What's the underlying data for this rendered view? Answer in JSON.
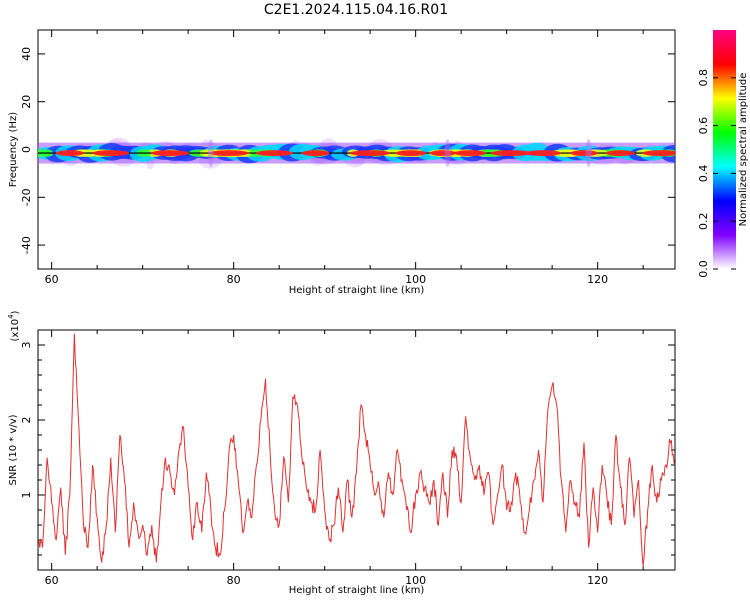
{
  "chart_data": [
    {
      "type": "heatmap",
      "title": "C2E1.2024.115.04.16.R01",
      "xlabel": "Height of straight line (km)",
      "ylabel": "Frequency (Hz)",
      "xlim": [
        58.5,
        128.5
      ],
      "ylim": [
        -50,
        50
      ],
      "xticks": [
        60,
        80,
        100,
        120
      ],
      "yticks": [
        40,
        20,
        0,
        -20,
        -40
      ],
      "center_frequency": -1.5,
      "band_width_hz": 7,
      "peaks_x": [
        62,
        66.5,
        73,
        79.5,
        84.5,
        89,
        95,
        99.5,
        103,
        106,
        110.5,
        114,
        118.5,
        122.5,
        127
      ],
      "colorbar": {
        "label": "Normalized spectral amplitude",
        "range": [
          0,
          1
        ],
        "ticks": [
          "0.0",
          "0.2",
          "0.4",
          "0.6",
          "0.8"
        ],
        "colors": [
          "#ffffff",
          "#8000ff",
          "#0000ff",
          "#00ffff",
          "#00ff00",
          "#ffff00",
          "#ff0000",
          "#ff0080"
        ]
      }
    },
    {
      "type": "line",
      "xlabel": "Height of straight line (km)",
      "ylabel": "SNR (10 * v/v)",
      "multiplier_label": "(x10",
      "multiplier_exp": "4",
      "multiplier_close": ")",
      "xlim": [
        58.5,
        128.5
      ],
      "ylim": [
        0,
        3.2
      ],
      "xticks": [
        60,
        80,
        100,
        120
      ],
      "yticks": [
        1,
        2,
        3
      ],
      "color": "#e03030",
      "x": [
        58.5,
        59,
        59.5,
        60,
        60.5,
        61,
        61.5,
        62,
        62.5,
        63,
        63.5,
        64,
        64.5,
        65,
        65.5,
        66,
        66.5,
        67,
        67.5,
        68,
        68.5,
        69,
        69.5,
        70,
        70.5,
        71,
        71.5,
        72,
        72.5,
        73,
        73.5,
        74,
        74.5,
        75,
        75.5,
        76,
        76.5,
        77,
        77.5,
        78,
        78.5,
        79,
        79.5,
        80,
        80.5,
        81,
        81.5,
        82,
        82.5,
        83,
        83.5,
        84,
        84.5,
        85,
        85.5,
        86,
        86.5,
        87,
        87.5,
        88,
        88.5,
        89,
        89.5,
        90,
        90.5,
        91,
        91.5,
        92,
        92.5,
        93,
        93.5,
        94,
        94.5,
        95,
        95.5,
        96,
        96.5,
        97,
        97.5,
        98,
        98.5,
        99,
        99.5,
        100,
        100.5,
        101,
        101.5,
        102,
        102.5,
        103,
        103.5,
        104,
        104.5,
        105,
        105.5,
        106,
        106.5,
        107,
        107.5,
        108,
        108.5,
        109,
        109.5,
        110,
        110.5,
        111,
        111.5,
        112,
        112.5,
        113,
        113.5,
        114,
        114.5,
        115,
        115.5,
        116,
        116.5,
        117,
        117.5,
        118,
        118.5,
        119,
        119.5,
        120,
        120.5,
        121,
        121.5,
        122,
        122.5,
        123,
        123.5,
        124,
        124.5,
        125,
        125.5,
        126,
        126.5,
        127,
        127.5,
        128,
        128.5
      ],
      "y": [
        0.4,
        0.3,
        1.5,
        0.9,
        0.4,
        1.1,
        0.2,
        1.0,
        3.15,
        1.9,
        0.6,
        0.3,
        1.4,
        0.7,
        0.1,
        0.6,
        1.5,
        0.5,
        1.8,
        1.2,
        0.3,
        0.9,
        0.5,
        0.6,
        0.2,
        0.6,
        0.1,
        0.9,
        1.5,
        1.3,
        1.0,
        1.6,
        1.9,
        1.1,
        0.4,
        0.9,
        0.5,
        1.3,
        0.8,
        0.3,
        0.2,
        0.8,
        1.6,
        1.8,
        1.2,
        0.5,
        0.9,
        0.7,
        1.4,
        2.0,
        2.55,
        1.6,
        0.8,
        0.6,
        1.5,
        0.9,
        2.3,
        2.2,
        1.5,
        1.1,
        0.9,
        0.8,
        1.6,
        0.8,
        0.4,
        0.6,
        1.1,
        0.5,
        1.2,
        0.7,
        1.3,
        2.2,
        1.8,
        1.4,
        1.0,
        1.1,
        0.7,
        1.3,
        1.0,
        1.6,
        1.2,
        0.8,
        0.5,
        1.0,
        1.3,
        1.1,
        0.9,
        1.2,
        0.6,
        1.3,
        0.7,
        1.6,
        1.5,
        0.9,
        2.05,
        1.5,
        1.2,
        1.4,
        1.0,
        1.3,
        0.6,
        1.0,
        1.4,
        0.8,
        0.9,
        1.3,
        0.9,
        0.5,
        0.8,
        1.2,
        1.6,
        0.9,
        2.1,
        2.45,
        2.2,
        1.2,
        0.5,
        1.2,
        0.9,
        0.7,
        1.7,
        0.3,
        1.1,
        0.5,
        1.4,
        1.0,
        0.6,
        1.8,
        1.1,
        0.6,
        1.5,
        0.7,
        1.2,
        0.05,
        0.8,
        1.4,
        0.9,
        1.2,
        1.4,
        1.7,
        1.4
      ]
    }
  ]
}
